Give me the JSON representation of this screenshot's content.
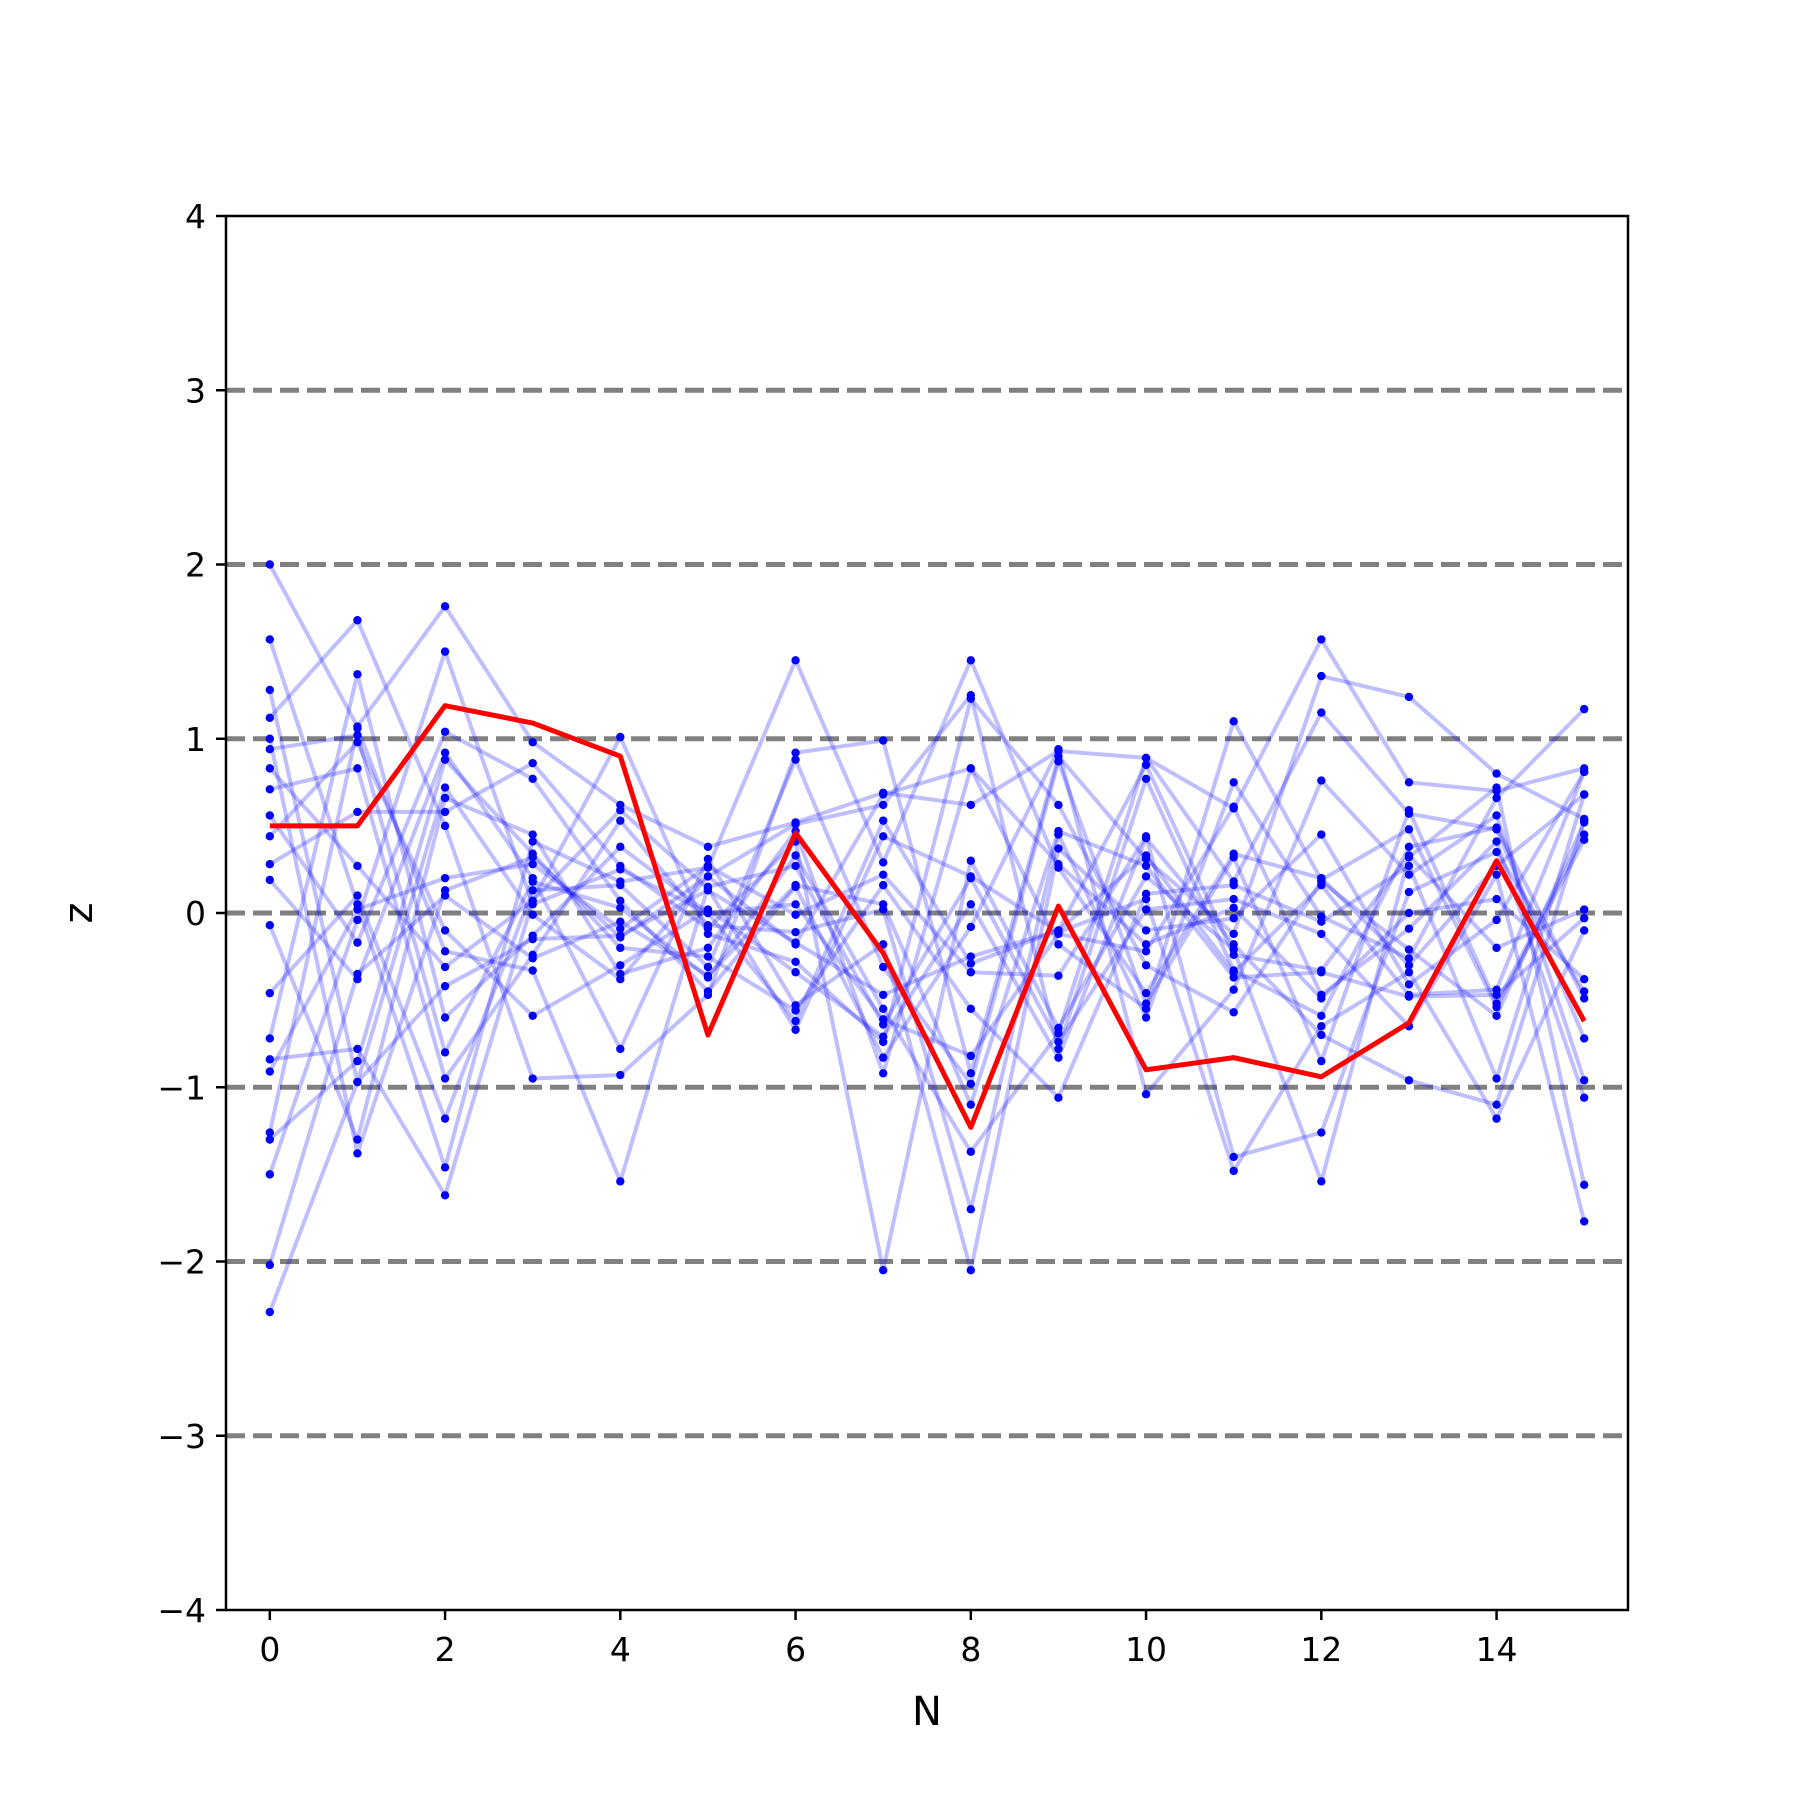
{
  "chart_data": {
    "type": "line",
    "xlabel": "N",
    "ylabel": "z",
    "xlim": [
      -0.5,
      15.5
    ],
    "ylim": [
      -4,
      4
    ],
    "x_ticks": [
      0,
      2,
      4,
      6,
      8,
      10,
      12,
      14
    ],
    "x_tick_labels": [
      "0",
      "2",
      "4",
      "6",
      "8",
      "10",
      "12",
      "14"
    ],
    "y_ticks": [
      -4,
      -3,
      -2,
      -1,
      0,
      1,
      2,
      3,
      4
    ],
    "y_tick_labels": [
      "−4",
      "−3",
      "−2",
      "−1",
      "0",
      "1",
      "2",
      "3",
      "4"
    ],
    "reference_lines": [
      -3,
      -2,
      -1,
      0,
      1,
      2,
      3
    ],
    "reference_line_style": "dashed",
    "colors": {
      "samples": "#0000ff",
      "highlight": "#ff0000",
      "reference": "#808080",
      "axes": "#000000"
    },
    "x": [
      0,
      1,
      2,
      3,
      4,
      5,
      6,
      7,
      8,
      9,
      10,
      11,
      12,
      13,
      14,
      15
    ],
    "highlight_series": {
      "values": [
        0.5,
        0.5,
        1.19,
        1.09,
        0.9,
        -0.7,
        0.46,
        -0.23,
        -1.23,
        0.04,
        -0.9,
        -0.83,
        -0.94,
        -0.63,
        0.3,
        -0.62
      ]
    },
    "sample_series": [
      [
        2.0,
        1.07,
        1.76,
        0.98,
        0.62,
        0.38,
        0.52,
        0.69,
        0.62,
        0.93,
        0.89,
        0.6,
        1.57,
        0.75,
        0.7,
        0.83
      ],
      [
        1.57,
        0.05,
        -1.46,
        0.41,
        0.18,
        0.26,
        1.45,
        0.29,
        1.45,
        0.26,
        -0.46,
        0.34,
        0.2,
        -0.3,
        0.27,
        0.68
      ],
      [
        1.28,
        -0.97,
        0.72,
        -0.01,
        -0.38,
        0.21,
        0.51,
        0.62,
        1.25,
        -0.78,
        0.77,
        -0.33,
        -0.59,
        0.38,
        0.49,
        -0.49
      ],
      [
        1.12,
        1.68,
        0.5,
        -0.95,
        -0.93,
        -0.47,
        0.92,
        0.99,
        -0.92,
        0.9,
        0.31,
        -0.12,
        1.36,
        1.24,
        0.8,
        0.54
      ],
      [
        1.0,
        -1.38,
        0.13,
        0.32,
        -0.14,
        0.21,
        -0.18,
        0.68,
        0.83,
        -0.18,
        -0.55,
        1.1,
        0.19,
        0.48,
        -0.54,
        0.42
      ],
      [
        0.94,
        1.02,
        -0.8,
        0.18,
        0.03,
        -0.37,
        0.33,
        -0.55,
        -1.37,
        -0.69,
        0.89,
        0.18,
        1.15,
        0.57,
        0.48,
        -0.72
      ],
      [
        0.83,
        0.27,
        -0.31,
        0.07,
        0.59,
        0.14,
        -0.67,
        0.44,
        0.21,
        -0.11,
        0.08,
        -1.48,
        -0.65,
        -0.34,
        -1.18,
        -0.1
      ],
      [
        0.71,
        0.83,
        -0.95,
        -0.24,
        0.53,
        -0.07,
        -0.11,
        0.02,
        -1.7,
        0.45,
        -0.6,
        0.75,
        -0.02,
        -0.26,
        0.66,
        1.17
      ],
      [
        0.56,
        -0.17,
        1.04,
        0.77,
        0.07,
        -0.45,
        0.15,
        -0.83,
        -0.08,
        0.94,
        -1.04,
        -0.44,
        0.76,
        0.22,
        0.56,
        -0.96
      ],
      [
        0.44,
        0.98,
        -0.1,
        -0.59,
        -0.3,
        0.02,
        -0.34,
        -0.71,
        0.05,
        -0.83,
        0.43,
        -0.18,
        -0.7,
        -0.96,
        -1.1,
        0.53
      ],
      [
        0.28,
        0.58,
        0.58,
        0.86,
        0.27,
        -0.09,
        0.41,
        -2.05,
        0.3,
        -0.66,
        0.21,
        -0.21,
        -1.54,
        0.32,
        0.72,
        -1.56
      ],
      [
        0.19,
        -0.38,
        0.92,
        0.2,
        -0.78,
        0.31,
        -0.53,
        -0.18,
        -2.05,
        0.37,
        -0.1,
        -0.03,
        0.45,
        -0.41,
        -0.04,
        0.81
      ],
      [
        -0.07,
        -1.3,
        0.66,
        0.45,
        -0.35,
        -0.2,
        0.47,
        -0.92,
        0.83,
        0.28,
        -0.18,
        0.03,
        -0.49,
        0.0,
        0.08,
        -0.38
      ],
      [
        -0.46,
        0.1,
        -1.18,
        0.13,
        0.16,
        -0.31,
        0.88,
        -0.31,
        -0.98,
        0.87,
        -0.52,
        0.32,
        -0.85,
        0.59,
        -0.52,
        0.45
      ],
      [
        -0.72,
        1.37,
        -0.6,
        -0.13,
        0.38,
        0.0,
        -0.62,
        0.53,
        -0.29,
        -0.1,
        0.85,
        -0.24,
        -0.33,
        0.33,
        -0.2,
        0.02
      ],
      [
        -0.84,
        -0.78,
        -1.62,
        0.07,
        1.01,
        -0.12,
        -0.28,
        -0.74,
        1.23,
        0.62,
        -0.3,
        -0.57,
        0.18,
        -0.21,
        -0.59,
        0.52
      ],
      [
        -0.91,
        0.02,
        0.2,
        0.28,
        -0.09,
        0.27,
        -0.01,
        0.22,
        -0.34,
        -0.36,
        0.44,
        -1.4,
        -1.26,
        0.12,
        0.35,
        -0.45
      ],
      [
        -1.26,
        1.06,
        -0.22,
        -0.33,
        -1.54,
        0.15,
        0.27,
        -0.64,
        0.2,
        -0.74,
        0.02,
        0.08,
        -0.12,
        -0.65,
        0.22,
        -1.77
      ],
      [
        -1.3,
        -0.85,
        0.88,
        0.34,
        -0.2,
        -0.25,
        -0.56,
        0.16,
        -0.55,
        -1.06,
        0.11,
        0.16,
        -0.05,
        0.27,
        -0.95,
        0.68
      ],
      [
        -1.5,
        -0.04,
        1.5,
        0.05,
        0.25,
        0.0,
        0.05,
        -0.61,
        -0.82,
        -0.12,
        -0.22,
        0.61,
        -0.47,
        -0.09,
        0.41,
        -1.06
      ],
      [
        -2.02,
        -0.35,
        0.1,
        -0.26,
        -0.05,
        -0.36,
        0.16,
        0.05,
        -1.1,
        0.47,
        0.27,
        -0.37,
        -0.34,
        -0.48,
        -0.47,
        -0.03
      ],
      [
        -2.29,
        -0.97,
        -0.42,
        -0.15,
        -0.13,
        0.13,
        -0.17,
        -0.47,
        -0.25,
        -0.1,
        0.33,
        -0.34,
        0.16,
        -0.47,
        -0.44,
        0.81
      ]
    ]
  }
}
